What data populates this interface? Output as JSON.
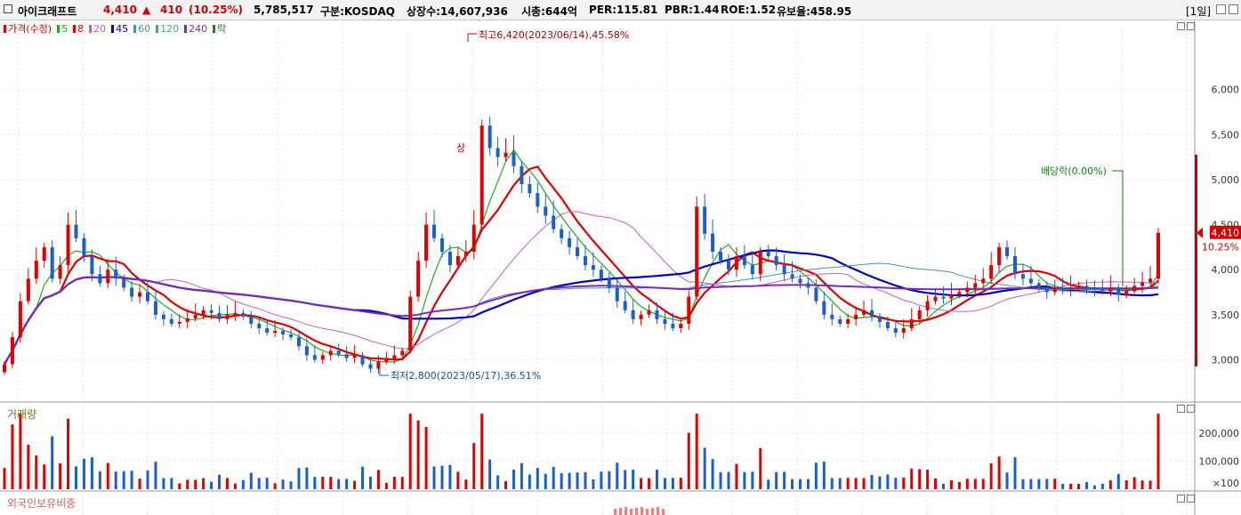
{
  "header": {
    "stock_name": "아이크래프트",
    "price": "4,410",
    "change_arrow": "▲",
    "change": "410",
    "change_pct": "(10.25%)",
    "volume": "5,785,517",
    "market": "구분:KOSDAQ",
    "shares": "상장수:14,607,936",
    "mktcap": "시총:644억",
    "per": "PER:115.81",
    "pbr": "PBR:1.44",
    "roe": "ROE:1.52",
    "turnover": "유보율:458.95",
    "period": "[1일]"
  },
  "legend": {
    "items": [
      {
        "label": "가격(수정)",
        "color": "#d00000"
      },
      {
        "label": "5",
        "color": "#22aa22"
      },
      {
        "label": "8",
        "color": "#dd0000"
      },
      {
        "label": "20",
        "color": "#c060c0"
      },
      {
        "label": "45",
        "color": "#0000c0"
      },
      {
        "label": "60",
        "color": "#4a90b8"
      },
      {
        "label": "120",
        "color": "#3aaa88"
      },
      {
        "label": "240",
        "color": "#7a2ab8"
      },
      {
        "label": "락",
        "color": "#1a7a1a"
      }
    ]
  },
  "chart_data": {
    "type": "candlestick",
    "price_axis": {
      "ticks": [
        "6,000",
        "5,500",
        "5,000",
        "4,500",
        "4,000",
        "3,500",
        "3,000"
      ],
      "tick_values": [
        6000,
        5500,
        5000,
        4500,
        4000,
        3500,
        3000
      ],
      "ylim": [
        2550,
        6600
      ]
    },
    "current_price_label": "4,410",
    "current_change_label": "10.25%",
    "current_price": 4410,
    "annotations": {
      "high": "최고6,420(2023/06/14),45.58%",
      "low": "최저2,800(2023/05/17),36.51%",
      "ex_dividend": "배당락(0.00%)",
      "buy_marker": "상"
    },
    "volume_pane": {
      "title": "거래량",
      "ticks": [
        "200,000",
        "100,000"
      ],
      "tick_values": [
        200000,
        100000
      ],
      "unit": "×100"
    },
    "foreign_pane": {
      "title": "외국인보유비중"
    },
    "closes": [
      2950,
      3250,
      3650,
      3900,
      4100,
      4250,
      3900,
      4050,
      4500,
      4350,
      4150,
      3950,
      3850,
      4000,
      3900,
      3800,
      3700,
      3750,
      3650,
      3500,
      3450,
      3400,
      3420,
      3460,
      3500,
      3550,
      3520,
      3450,
      3500,
      3520,
      3480,
      3400,
      3350,
      3300,
      3320,
      3280,
      3250,
      3150,
      3050,
      3000,
      3050,
      3100,
      3060,
      3020,
      3050,
      2950,
      2900,
      2980,
      3000,
      3050,
      3100,
      3700,
      4100,
      4500,
      4350,
      4200,
      4050,
      4150,
      4200,
      4500,
      5600,
      5350,
      5250,
      5300,
      5150,
      4950,
      4850,
      4700,
      4600,
      4450,
      4350,
      4250,
      4150,
      4050,
      4000,
      3900,
      3800,
      3650,
      3550,
      3450,
      3500,
      3550,
      3450,
      3400,
      3350,
      3400,
      3700,
      4700,
      4400,
      4200,
      4100,
      4000,
      4150,
      4050,
      3950,
      4200,
      4150,
      4050,
      3950,
      3900,
      3850,
      3800,
      3650,
      3500,
      3450,
      3400,
      3450,
      3500,
      3550,
      3480,
      3420,
      3350,
      3300,
      3350,
      3450,
      3550,
      3650,
      3700,
      3680,
      3720,
      3750,
      3800,
      3850,
      3900,
      4050,
      4250,
      4150,
      3950,
      3900,
      3850,
      3800,
      3750,
      3800,
      3780,
      3800,
      3820,
      3790,
      3780,
      3760,
      3800,
      3720,
      3760,
      3820,
      3860,
      3900,
      4410
    ]
  }
}
